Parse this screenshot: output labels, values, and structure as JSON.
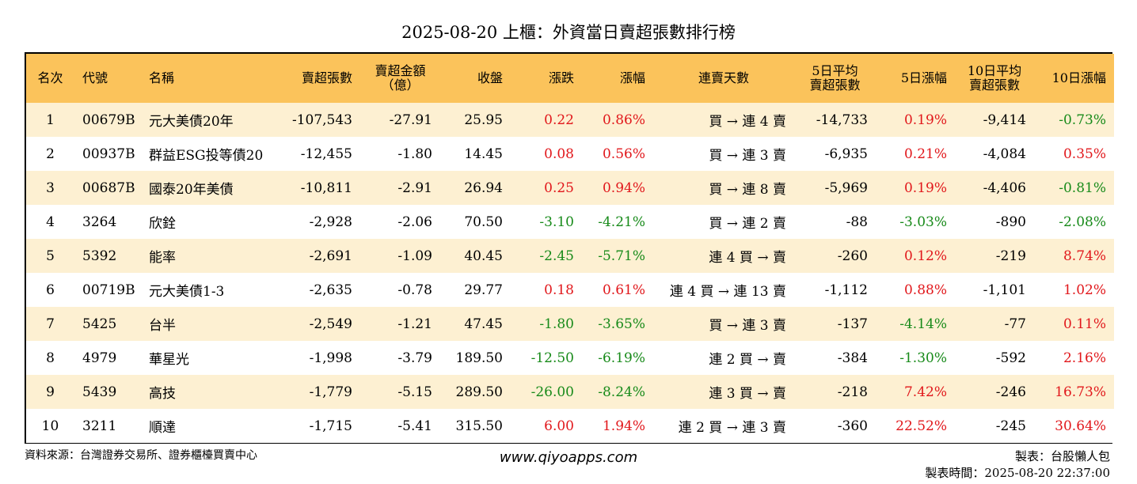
{
  "title": "2025-08-20 上櫃：外資當日賣超張數排行榜",
  "headers": {
    "rank": "名次",
    "code": "代號",
    "name": "名稱",
    "sell_lots": "賣超張數",
    "amount_line1": "賣超金額",
    "amount_line2": "（億）",
    "close": "收盤",
    "change": "漲跌",
    "pct": "漲幅",
    "streak": "連賣天數",
    "avg5_line1": "5日平均",
    "avg5_line2": "賣超張數",
    "pct5": "5日漲幅",
    "avg10_line1": "10日平均",
    "avg10_line2": "賣超張數",
    "pct10": "10日漲幅"
  },
  "rows": [
    {
      "rank": "1",
      "code": "00679B",
      "name": "元大美債20年",
      "sell_lots": "-107,543",
      "amount": "-27.91",
      "close": "25.95",
      "change": "0.22",
      "pct": "0.86%",
      "streak": "買 → 連 4 賣",
      "avg5": "-14,733",
      "pct5": "0.19%",
      "avg10": "-9,414",
      "pct10": "-0.73%"
    },
    {
      "rank": "2",
      "code": "00937B",
      "name": "群益ESG投等債20",
      "sell_lots": "-12,455",
      "amount": "-1.80",
      "close": "14.45",
      "change": "0.08",
      "pct": "0.56%",
      "streak": "買 → 連 3 賣",
      "avg5": "-6,935",
      "pct5": "0.21%",
      "avg10": "-4,084",
      "pct10": "0.35%"
    },
    {
      "rank": "3",
      "code": "00687B",
      "name": "國泰20年美債",
      "sell_lots": "-10,811",
      "amount": "-2.91",
      "close": "26.94",
      "change": "0.25",
      "pct": "0.94%",
      "streak": "買 → 連 8 賣",
      "avg5": "-5,969",
      "pct5": "0.19%",
      "avg10": "-4,406",
      "pct10": "-0.81%"
    },
    {
      "rank": "4",
      "code": "3264",
      "name": "欣銓",
      "sell_lots": "-2,928",
      "amount": "-2.06",
      "close": "70.50",
      "change": "-3.10",
      "pct": "-4.21%",
      "streak": "買 → 連 2 賣",
      "avg5": "-88",
      "pct5": "-3.03%",
      "avg10": "-890",
      "pct10": "-2.08%"
    },
    {
      "rank": "5",
      "code": "5392",
      "name": "能率",
      "sell_lots": "-2,691",
      "amount": "-1.09",
      "close": "40.45",
      "change": "-2.45",
      "pct": "-5.71%",
      "streak": "連 4 買 → 賣",
      "avg5": "-260",
      "pct5": "0.12%",
      "avg10": "-219",
      "pct10": "8.74%"
    },
    {
      "rank": "6",
      "code": "00719B",
      "name": "元大美債1-3",
      "sell_lots": "-2,635",
      "amount": "-0.78",
      "close": "29.77",
      "change": "0.18",
      "pct": "0.61%",
      "streak": "連 4 買 → 連 13 賣",
      "avg5": "-1,112",
      "pct5": "0.88%",
      "avg10": "-1,101",
      "pct10": "1.02%"
    },
    {
      "rank": "7",
      "code": "5425",
      "name": "台半",
      "sell_lots": "-2,549",
      "amount": "-1.21",
      "close": "47.45",
      "change": "-1.80",
      "pct": "-3.65%",
      "streak": "買 → 連 3 賣",
      "avg5": "-137",
      "pct5": "-4.14%",
      "avg10": "-77",
      "pct10": "0.11%"
    },
    {
      "rank": "8",
      "code": "4979",
      "name": "華星光",
      "sell_lots": "-1,998",
      "amount": "-3.79",
      "close": "189.50",
      "change": "-12.50",
      "pct": "-6.19%",
      "streak": "連 2 買 → 賣",
      "avg5": "-384",
      "pct5": "-1.30%",
      "avg10": "-592",
      "pct10": "2.16%"
    },
    {
      "rank": "9",
      "code": "5439",
      "name": "高技",
      "sell_lots": "-1,779",
      "amount": "-5.15",
      "close": "289.50",
      "change": "-26.00",
      "pct": "-8.24%",
      "streak": "連 3 買 → 賣",
      "avg5": "-218",
      "pct5": "7.42%",
      "avg10": "-246",
      "pct10": "16.73%"
    },
    {
      "rank": "10",
      "code": "3211",
      "name": "順達",
      "sell_lots": "-1,715",
      "amount": "-5.41",
      "close": "315.50",
      "change": "6.00",
      "pct": "1.94%",
      "streak": "連 2 買 → 連 3 賣",
      "avg5": "-360",
      "pct5": "22.52%",
      "avg10": "-245",
      "pct10": "30.64%"
    }
  ],
  "colors": {
    "header_bg": "#fbc35b",
    "row_alt_bg": "#fdf0d2",
    "positive": "#e1171b",
    "negative": "#178a19"
  },
  "footer": {
    "source": "資料來源：台灣證券交易所、證券櫃檯買賣中心",
    "website": "www.qiyoapps.com",
    "author": "製表：台股懶人包",
    "timestamp": "製表時間：2025-08-20 22:37:00"
  }
}
